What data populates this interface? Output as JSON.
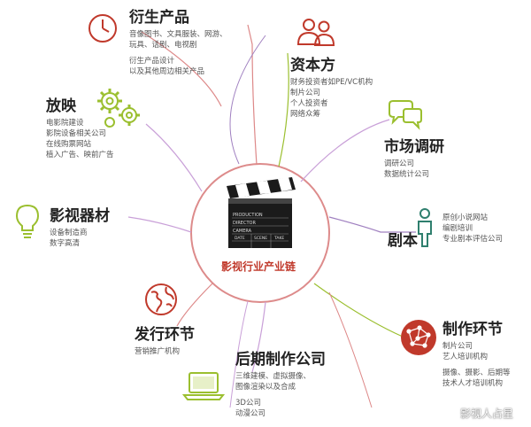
{
  "center": {
    "label": "影视行业产业链",
    "clapper": {
      "line1": "PRODUCTION",
      "line2": "DIRECTOR",
      "line3": "CAMERA",
      "footer": [
        "DATE",
        "SCENE",
        "TAKE"
      ]
    }
  },
  "nodes": [
    {
      "id": "yansheng",
      "title": "衍生产品",
      "lines": [
        "音像图书、文具服装、网游、",
        "玩具、话剧、电视剧",
        "衍生产品设计",
        "以及其他周边相关产品"
      ],
      "icon": "clock-icon",
      "color": "#c0392b"
    },
    {
      "id": "ziben",
      "title": "资本方",
      "lines": [
        "财务投资者如PE/VC机构",
        "制片公司",
        "个人投资者",
        "网络众筹"
      ],
      "icon": "people-icon",
      "color": "#c0392b"
    },
    {
      "id": "shichang",
      "title": "市场调研",
      "lines": [
        "调研公司",
        "数据统计公司"
      ],
      "icon": "chat-bubbles-icon",
      "color": "#9bbf2f"
    },
    {
      "id": "juben",
      "title": "剧本",
      "lines": [
        "原创小说网站",
        "编剧培训",
        "专业剧本评估公司"
      ],
      "icon": "person-icon",
      "color": "#2f7f6e"
    },
    {
      "id": "zhizuo",
      "title": "制作环节",
      "lines": [
        "制片公司",
        "艺人培训机构",
        "摄像、摄影、后期等",
        "技术人才培训机构"
      ],
      "icon": "network-globe-icon",
      "color": "#c0392b"
    },
    {
      "id": "houqi",
      "title": "后期制作公司",
      "lines": [
        "三维建模、虚拟摄像、",
        "图像渲染以及合成",
        "3D公司",
        "动漫公司"
      ],
      "icon": "laptop-icon",
      "color": "#9bbf2f"
    },
    {
      "id": "faxing",
      "title": "发行环节",
      "lines": [
        "营销推广机构"
      ],
      "icon": "globe-icon",
      "color": "#c0392b"
    },
    {
      "id": "qicai",
      "title": "影视器材",
      "lines": [
        "设备制造商",
        "数字高清"
      ],
      "icon": "lightbulb-icon",
      "color": "#9bbf2f"
    },
    {
      "id": "fangying",
      "title": "放映",
      "lines": [
        "电影院建设",
        "影院设备相关公司",
        "在线购票网站",
        "植入广告、映前广告"
      ],
      "icon": "gears-icon",
      "color": "#9bbf2f"
    }
  ],
  "watermark": "影视人占星"
}
